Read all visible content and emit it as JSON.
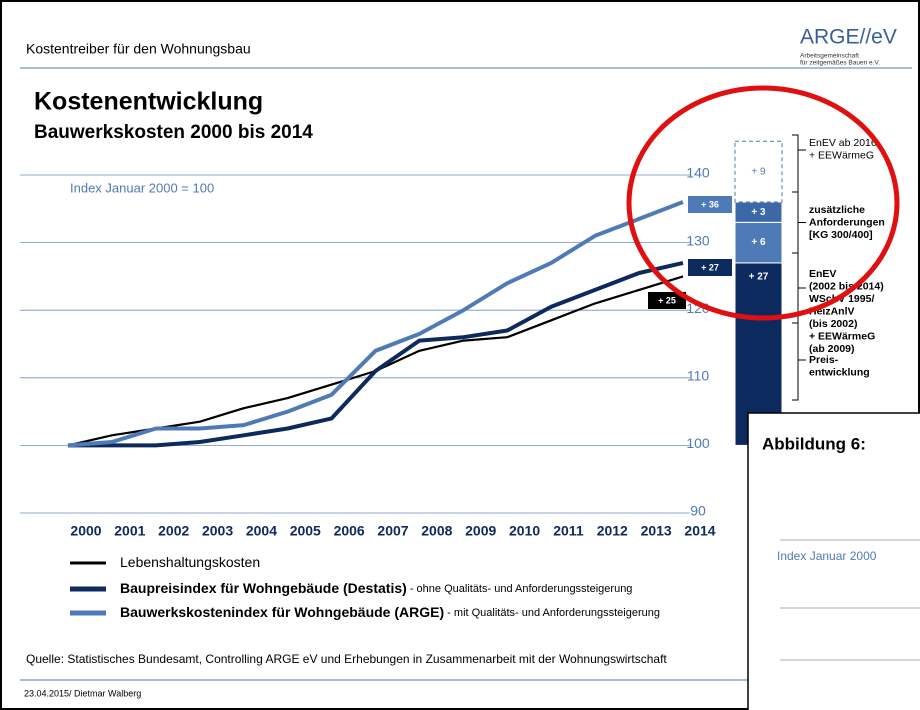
{
  "header": {
    "slide_title": "Kostentreiber für den Wohnungsbau",
    "logo": "ARGE//eV",
    "logo_line1": "Arbeitsgemeinschaft",
    "logo_line2": "für zeitgemäßes Bauen e.V."
  },
  "chart_data": {
    "type": "line",
    "title": "Kostenentwicklung",
    "subtitle": "Bauwerkskosten 2000 bis 2014",
    "annotation": "Index Januar 2000 = 100",
    "x": [
      2000,
      2001,
      2002,
      2003,
      2004,
      2005,
      2006,
      2007,
      2008,
      2009,
      2010,
      2011,
      2012,
      2013,
      2014
    ],
    "xlim": [
      2000,
      2014
    ],
    "xticks": [
      2000,
      2001,
      2002,
      2003,
      2004,
      2005,
      2006,
      2007,
      2008,
      2009,
      2010,
      2011,
      2012,
      2013,
      2014
    ],
    "ylim": [
      90,
      140
    ],
    "yticks": [
      90,
      100,
      110,
      120,
      130,
      140
    ],
    "grid": true,
    "series": [
      {
        "name": "Lebenshaltungskosten",
        "color": "#000000",
        "note": "",
        "end_label": "+ 25",
        "values": [
          100,
          101.5,
          102.5,
          103.5,
          105.5,
          107,
          109,
          111,
          114,
          115.5,
          116,
          118.5,
          121,
          123,
          125
        ]
      },
      {
        "name": "Baupreisindex für Wohngebäude (Destatis)",
        "color": "#0d2a5e",
        "note": " - ohne Qualitäts- und Anforderungssteigerung",
        "end_label": "+ 27",
        "values": [
          100,
          100,
          100,
          100.5,
          101.5,
          102.5,
          104,
          111,
          115.5,
          116,
          117,
          120.5,
          123,
          125.5,
          127
        ]
      },
      {
        "name": "Bauwerkskostenindex für Wohngebäude (ARGE)",
        "color": "#4f7ab8",
        "note": " - mit Qualitäts- und Anforderungssteigerung",
        "end_label": "+ 36",
        "values": [
          100,
          100.5,
          102.5,
          102.5,
          103,
          105,
          107.5,
          114,
          116.5,
          120,
          124,
          127,
          131,
          133.5,
          136
        ]
      }
    ],
    "stack": {
      "values": [
        27,
        6,
        3,
        9
      ],
      "value_labels": [
        "+ 27",
        "+ 6",
        "+ 3",
        "+ 9"
      ],
      "colors": [
        "#0d2a5e",
        "#4f7ab8",
        "#3d68a8",
        "#ffffff"
      ],
      "brackets": [
        [
          "Preis-",
          "entwicklung"
        ],
        [
          "EnEV",
          "(2002 bis 2014)",
          "WSchV 1995/",
          "HeizAnlV",
          "(bis 2002)",
          "+ EEWärmeG",
          "(ab 2009)"
        ],
        [
          "zusätzliche",
          "Anforderungen",
          "[KG 300/400]"
        ],
        [
          "EnEV ab 2016",
          "+ EEWärmeG"
        ]
      ]
    }
  },
  "source": "Quelle: Statistisches Bundesamt, Controlling ARGE eV und Erhebungen in Zusammenarbeit mit der Wohnungswirtschaft",
  "footer": "23.04.2015/ Dietmar Walberg",
  "overlay": {
    "title": "Abbildung 6:",
    "text": "Index Januar 2000"
  }
}
